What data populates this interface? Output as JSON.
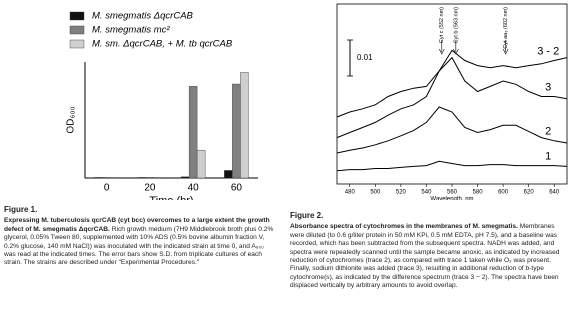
{
  "chart_data": [
    {
      "type": "bar",
      "x_label": "Time (hr)",
      "y_label": "OD₆₀₀",
      "categories": [
        "0",
        "20",
        "40",
        "60"
      ],
      "series": [
        {
          "name": "M. smegmatis ΔqcrCAB",
          "color": "#111111",
          "values": [
            0.01,
            0.01,
            0.02,
            0.13
          ]
        },
        {
          "name": "M. smegmatis mc²",
          "color": "#808080",
          "values": [
            0.01,
            0.01,
            1.58,
            1.62
          ]
        },
        {
          "name": "M. sm. ΔqcrCAB, + M. tb qcrCAB",
          "color": "#cfcfcf",
          "values": [
            0.01,
            0.01,
            0.48,
            1.82
          ]
        }
      ],
      "ylim": [
        0,
        2
      ]
    },
    {
      "type": "line",
      "x_label": "Wavelength, nm",
      "x": [
        470,
        480,
        490,
        500,
        510,
        520,
        530,
        540,
        550,
        560,
        570,
        580,
        590,
        600,
        610,
        620,
        630,
        640,
        650
      ],
      "series": [
        {
          "name": "1",
          "color": "#000000",
          "values": [
            0.0037,
            0.004,
            0.004,
            0.0043,
            0.0043,
            0.0046,
            0.0049,
            0.0051,
            0.0063,
            0.0057,
            0.0051,
            0.0051,
            0.0054,
            0.0054,
            0.0051,
            0.0051,
            0.0051,
            0.0051,
            0.0049
          ]
        },
        {
          "name": "2",
          "color": "#000000",
          "values": [
            0.0086,
            0.0094,
            0.01,
            0.0109,
            0.012,
            0.0134,
            0.0149,
            0.0171,
            0.0214,
            0.02,
            0.0157,
            0.0143,
            0.0151,
            0.0163,
            0.0163,
            0.0146,
            0.0129,
            0.012,
            0.0114
          ]
        },
        {
          "name": "3",
          "color": "#000000",
          "values": [
            0.0129,
            0.0143,
            0.0157,
            0.0171,
            0.0191,
            0.0209,
            0.022,
            0.0243,
            0.0314,
            0.0351,
            0.0286,
            0.0257,
            0.0271,
            0.0286,
            0.0277,
            0.0257,
            0.0243,
            0.0243,
            0.0237
          ]
        },
        {
          "name": "3 - 2",
          "color": "#000000",
          "values": [
            0.0186,
            0.02,
            0.0209,
            0.022,
            0.0243,
            0.0257,
            0.0266,
            0.0271,
            0.0314,
            0.0371,
            0.0343,
            0.0329,
            0.0323,
            0.0329,
            0.0323,
            0.0329,
            0.0334,
            0.0343,
            0.0351
          ]
        }
      ],
      "xlim": [
        470,
        650
      ],
      "xticks": [
        480,
        500,
        520,
        540,
        560,
        580,
        600,
        620,
        640
      ],
      "ylim": [
        0,
        0.05
      ],
      "scale_bar": 0.01,
      "annotations": [
        {
          "text": "Cyt c (552 nm)",
          "x": 552
        },
        {
          "text": "Cyt b (563 nm)",
          "x": 563
        },
        {
          "text": "Cyt aa₃ (602 nm)",
          "x": 602
        }
      ]
    }
  ],
  "captions": [
    {
      "label": "Figure 1.",
      "title": "Expressing M. tuberculosis qcrCAB (cyt bcc) overcomes to a large extent the growth defect of M. smegmatis ΔqcrCAB.",
      "body": "Rich growth medium (7H9 Middlebrook broth plus 0.2% glycerol, 0.05% Tween 80, supplemented with 10% ADS (0.5% bovine albumin fraction V, 0.2% glucose, 140 mM NaCl)) was inoculated with the indicated strain at time 0, and A₆₀₀ was read at the indicated times. The error bars show S.D. from triplicate cultures of each strain. The strains are described under \"Experimental Procedures.\""
    },
    {
      "label": "Figure 2.",
      "title": "Absorbance spectra of cytochromes in the membranes of M. smegmatis.",
      "body": "Membranes were diluted (to 0.6 g/liter protein in 50 mM KPi, 0.5 mM EDTA, pH 7.5), and a baseline was recorded, which has been subtracted from the subsequent spectra. NADH was added, and spectra were repeatedly scanned until the sample became anoxic, as indicated by increased reduction of cytochromes (trace 2), as compared with trace 1 taken while O₂ was present. Finally, sodium dithionite was added (trace 3), resulting in additional reduction of b-type cytochrome(s), as indicated by the difference spectrum (trace 3 − 2). The spectra have been displaced vertically by arbitrary amounts to avoid overlap."
    }
  ]
}
